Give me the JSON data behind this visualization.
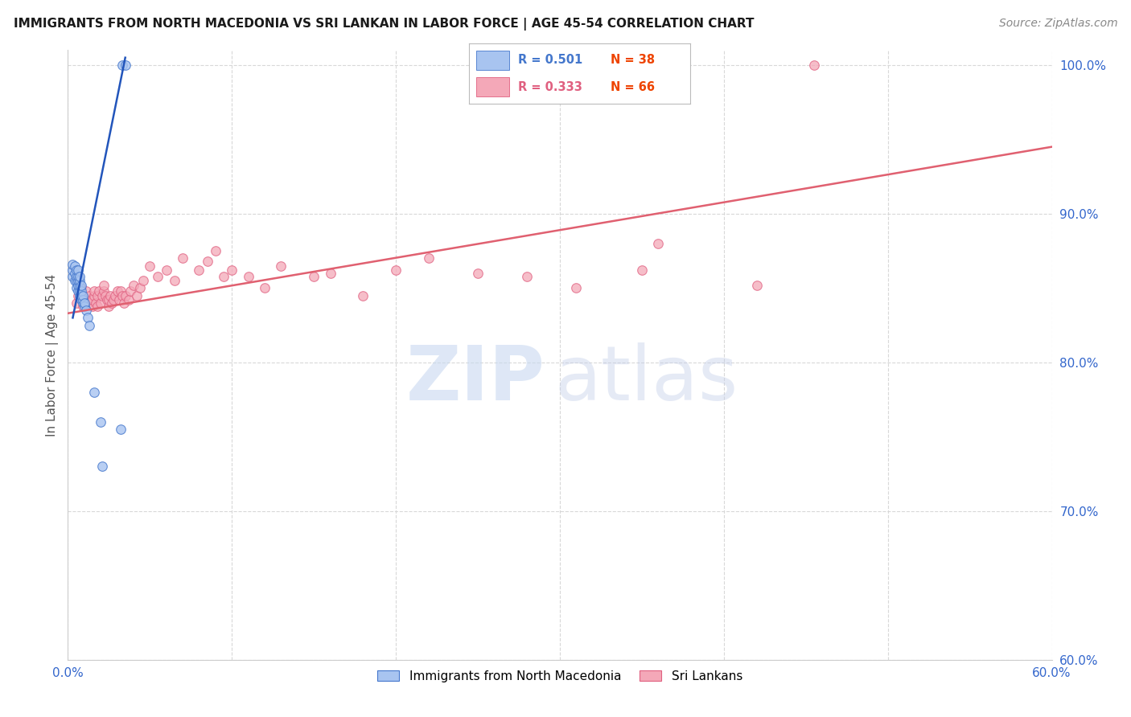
{
  "title": "IMMIGRANTS FROM NORTH MACEDONIA VS SRI LANKAN IN LABOR FORCE | AGE 45-54 CORRELATION CHART",
  "source": "Source: ZipAtlas.com",
  "ylabel": "In Labor Force | Age 45-54",
  "xlim": [
    0.0,
    0.6
  ],
  "ylim": [
    0.6,
    1.01
  ],
  "xticks": [
    0.0,
    0.1,
    0.2,
    0.3,
    0.4,
    0.5,
    0.6
  ],
  "xticklabels": [
    "0.0%",
    "",
    "",
    "",
    "",
    "",
    "60.0%"
  ],
  "yticks_right": [
    1.0,
    0.9,
    0.8,
    0.7,
    0.6
  ],
  "yticklabels_right": [
    "100.0%",
    "90.0%",
    "80.0%",
    "70.0%",
    "60.0%"
  ],
  "blue_fill": "#a8c4f0",
  "blue_edge": "#4477cc",
  "pink_fill": "#f4a8b8",
  "pink_edge": "#e06080",
  "blue_line_color": "#2255bb",
  "pink_line_color": "#e06070",
  "watermark_zip_color": "#c8d8f0",
  "watermark_atlas_color": "#c0cce8",
  "fig_bg": "#ffffff",
  "grid_color": "#d8d8d8",
  "blue_scatter_x": [
    0.003,
    0.003,
    0.003,
    0.004,
    0.004,
    0.004,
    0.005,
    0.005,
    0.005,
    0.005,
    0.006,
    0.006,
    0.006,
    0.006,
    0.006,
    0.007,
    0.007,
    0.007,
    0.007,
    0.007,
    0.008,
    0.008,
    0.008,
    0.008,
    0.009,
    0.009,
    0.009,
    0.01,
    0.01,
    0.011,
    0.012,
    0.013,
    0.016,
    0.02,
    0.021,
    0.032,
    0.033,
    0.035
  ],
  "blue_scatter_y": [
    0.858,
    0.862,
    0.866,
    0.855,
    0.86,
    0.865,
    0.85,
    0.855,
    0.858,
    0.862,
    0.848,
    0.852,
    0.855,
    0.858,
    0.862,
    0.845,
    0.848,
    0.852,
    0.855,
    0.858,
    0.842,
    0.845,
    0.848,
    0.852,
    0.84,
    0.842,
    0.845,
    0.838,
    0.84,
    0.835,
    0.83,
    0.825,
    0.78,
    0.76,
    0.73,
    0.755,
    1.0,
    1.0
  ],
  "pink_scatter_x": [
    0.005,
    0.006,
    0.008,
    0.009,
    0.01,
    0.011,
    0.012,
    0.013,
    0.014,
    0.015,
    0.015,
    0.016,
    0.016,
    0.017,
    0.018,
    0.018,
    0.019,
    0.02,
    0.021,
    0.022,
    0.022,
    0.023,
    0.024,
    0.025,
    0.025,
    0.026,
    0.027,
    0.028,
    0.029,
    0.03,
    0.031,
    0.032,
    0.033,
    0.034,
    0.035,
    0.037,
    0.038,
    0.04,
    0.042,
    0.044,
    0.046,
    0.05,
    0.055,
    0.06,
    0.065,
    0.07,
    0.08,
    0.085,
    0.09,
    0.095,
    0.1,
    0.11,
    0.12,
    0.13,
    0.15,
    0.16,
    0.18,
    0.2,
    0.22,
    0.25,
    0.28,
    0.31,
    0.35,
    0.36,
    0.42,
    0.455
  ],
  "pink_scatter_y": [
    0.84,
    0.845,
    0.85,
    0.838,
    0.842,
    0.848,
    0.84,
    0.845,
    0.842,
    0.838,
    0.842,
    0.845,
    0.848,
    0.84,
    0.838,
    0.845,
    0.848,
    0.84,
    0.845,
    0.848,
    0.852,
    0.845,
    0.842,
    0.838,
    0.842,
    0.845,
    0.84,
    0.842,
    0.845,
    0.848,
    0.842,
    0.848,
    0.845,
    0.84,
    0.845,
    0.842,
    0.848,
    0.852,
    0.845,
    0.85,
    0.855,
    0.865,
    0.858,
    0.862,
    0.855,
    0.87,
    0.862,
    0.868,
    0.875,
    0.858,
    0.862,
    0.858,
    0.85,
    0.865,
    0.858,
    0.86,
    0.845,
    0.862,
    0.87,
    0.86,
    0.858,
    0.85,
    0.862,
    0.88,
    0.852,
    1.0
  ],
  "blue_line_x": [
    0.003,
    0.035
  ],
  "blue_line_y": [
    0.83,
    1.005
  ],
  "pink_line_x": [
    0.0,
    0.6
  ],
  "pink_line_y": [
    0.833,
    0.945
  ],
  "legend_r_blue_color": "#4477cc",
  "legend_n_blue_color": "#ee4400",
  "legend_r_pink_color": "#e06080",
  "legend_n_pink_color": "#ee4400"
}
